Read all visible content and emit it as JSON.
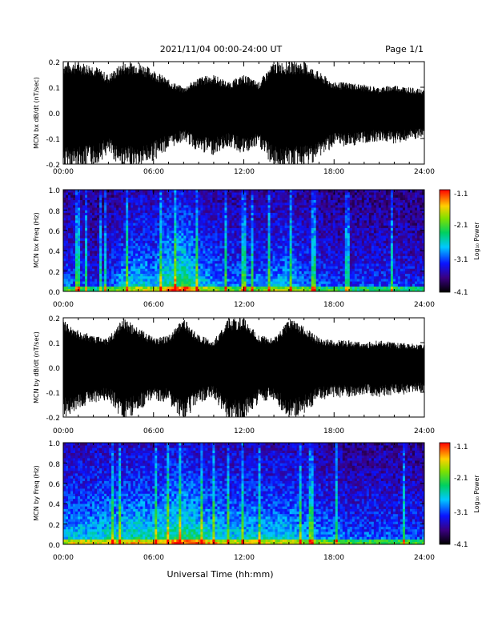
{
  "header": {
    "date_range": "2021/11/04  00:00-24:00 UT",
    "page": "Page 1/1"
  },
  "x_axis": {
    "title": "Universal Time (hh:mm)",
    "tick_labels": [
      "00:00",
      "06:00",
      "12:00",
      "18:00",
      "24:00"
    ]
  },
  "colorbar": {
    "label": "Log₁₀ Power",
    "tick_labels": [
      "-1.1",
      "-2.1",
      "-3.1",
      "-4.1"
    ]
  },
  "chart_data": [
    {
      "type": "line",
      "panel": "bx-dbdt",
      "ylabel": "MCN bx dB/dt (nT/sec)",
      "ylim": [
        -0.2,
        0.2
      ],
      "xlim_hours": [
        0,
        24
      ],
      "y_tick_labels": [
        "-0.2",
        "-0.1",
        "0.0",
        "0.1",
        "0.2"
      ],
      "envelope": {
        "hours": [
          0,
          1,
          2,
          3,
          4,
          5,
          6,
          7,
          8,
          9,
          10,
          11,
          12,
          13,
          14,
          15,
          16,
          17,
          18,
          19,
          20,
          21,
          22,
          23,
          24
        ],
        "amplitude": [
          0.2,
          0.2,
          0.19,
          0.15,
          0.2,
          0.2,
          0.17,
          0.13,
          0.1,
          0.14,
          0.15,
          0.12,
          0.15,
          0.12,
          0.2,
          0.2,
          0.2,
          0.16,
          0.12,
          0.12,
          0.11,
          0.1,
          0.11,
          0.1,
          0.09
        ]
      },
      "grid": false
    },
    {
      "type": "heatmap",
      "panel": "bx-spectrogram",
      "ylabel": "MCN bx Freq (Hz)",
      "ylim": [
        0.0,
        1.0
      ],
      "xlim_hours": [
        0,
        24
      ],
      "y_tick_labels": [
        "0.0",
        "0.2",
        "0.4",
        "0.6",
        "0.8",
        "1.0"
      ],
      "colorbar_range": [
        -4.1,
        -1.1
      ],
      "activity": {
        "hours": [
          0,
          1,
          2,
          3,
          4,
          5,
          6,
          7,
          8,
          9,
          10,
          11,
          12,
          13,
          14,
          15,
          16,
          17,
          18,
          19,
          20,
          21,
          22,
          23,
          24
        ],
        "level": [
          0.4,
          0.4,
          0.3,
          0.35,
          0.55,
          0.6,
          0.55,
          0.75,
          0.85,
          0.6,
          0.5,
          0.45,
          0.45,
          0.45,
          0.5,
          0.55,
          0.45,
          0.4,
          0.35,
          0.3,
          0.35,
          0.35,
          0.35,
          0.3,
          0.3
        ]
      }
    },
    {
      "type": "line",
      "panel": "by-dbdt",
      "ylabel": "MCN by dB/dt (nT/sec)",
      "ylim": [
        -0.2,
        0.2
      ],
      "xlim_hours": [
        0,
        24
      ],
      "y_tick_labels": [
        "-0.2",
        "-0.1",
        "0.0",
        "0.1",
        "0.2"
      ],
      "envelope": {
        "hours": [
          0,
          1,
          2,
          3,
          4,
          5,
          6,
          7,
          8,
          9,
          10,
          11,
          12,
          13,
          14,
          15,
          16,
          17,
          18,
          19,
          20,
          21,
          22,
          23,
          24
        ],
        "amplitude": [
          0.19,
          0.15,
          0.13,
          0.12,
          0.2,
          0.16,
          0.12,
          0.13,
          0.2,
          0.13,
          0.11,
          0.2,
          0.2,
          0.13,
          0.12,
          0.2,
          0.17,
          0.12,
          0.11,
          0.11,
          0.1,
          0.11,
          0.1,
          0.1,
          0.09
        ]
      },
      "grid": false
    },
    {
      "type": "heatmap",
      "panel": "by-spectrogram",
      "ylabel": "MCN by Freq (Hz)",
      "ylim": [
        0.0,
        1.0
      ],
      "xlim_hours": [
        0,
        24
      ],
      "y_tick_labels": [
        "0.0",
        "0.2",
        "0.4",
        "0.6",
        "0.8",
        "1.0"
      ],
      "colorbar_range": [
        -4.1,
        -1.1
      ],
      "activity": {
        "hours": [
          0,
          1,
          2,
          3,
          4,
          5,
          6,
          7,
          8,
          9,
          10,
          11,
          12,
          13,
          14,
          15,
          16,
          17,
          18,
          19,
          20,
          21,
          22,
          23,
          24
        ],
        "level": [
          0.55,
          0.6,
          0.6,
          0.65,
          0.65,
          0.7,
          0.65,
          0.75,
          0.8,
          0.7,
          0.65,
          0.6,
          0.6,
          0.6,
          0.6,
          0.6,
          0.55,
          0.5,
          0.45,
          0.4,
          0.4,
          0.4,
          0.4,
          0.4,
          0.35
        ]
      }
    }
  ]
}
